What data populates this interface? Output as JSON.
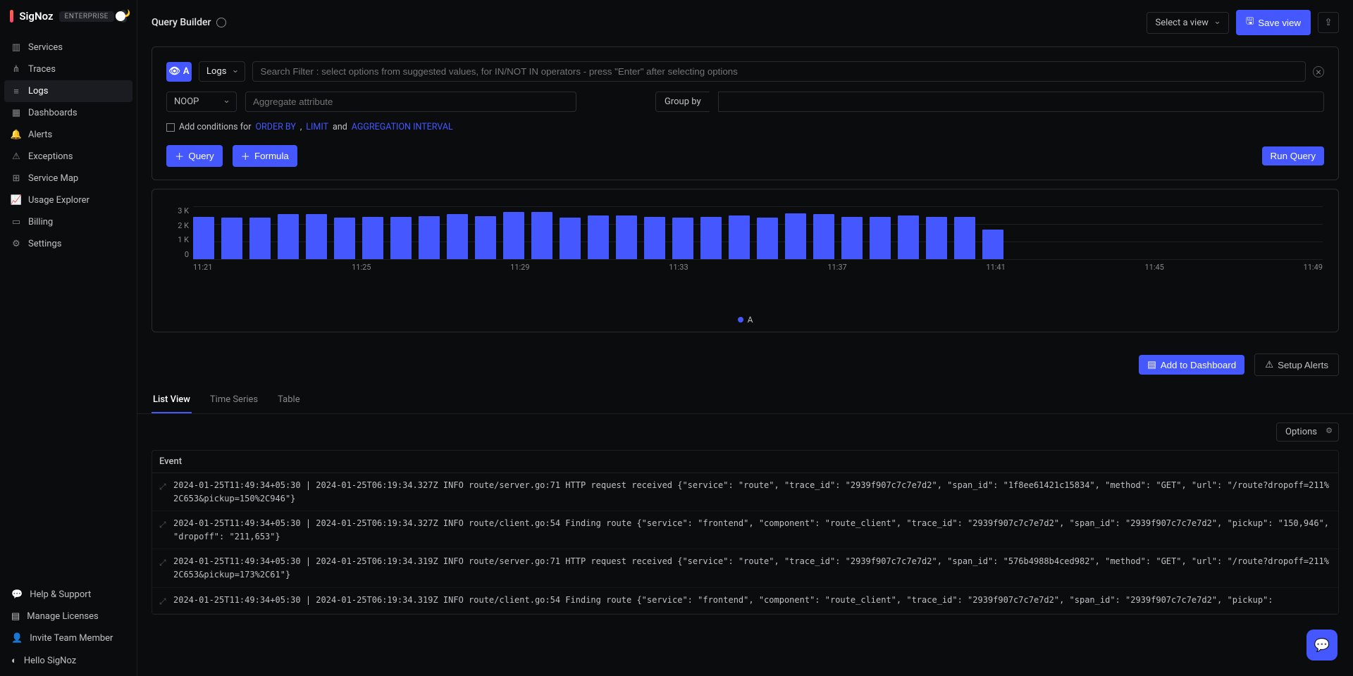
{
  "brand": {
    "name": "SigNoz",
    "badge": "ENTERPRISE"
  },
  "nav": {
    "items": [
      {
        "label": "Services",
        "icon": "bar-chart"
      },
      {
        "label": "Traces",
        "icon": "share"
      },
      {
        "label": "Logs",
        "icon": "logs",
        "active": true
      },
      {
        "label": "Dashboards",
        "icon": "grid"
      },
      {
        "label": "Alerts",
        "icon": "bell"
      },
      {
        "label": "Exceptions",
        "icon": "bug"
      },
      {
        "label": "Service Map",
        "icon": "map"
      },
      {
        "label": "Usage Explorer",
        "icon": "chart-line"
      },
      {
        "label": "Billing",
        "icon": "receipt"
      },
      {
        "label": "Settings",
        "icon": "gear"
      }
    ],
    "bottom": [
      {
        "label": "Help & Support",
        "icon": "help"
      },
      {
        "label": "Manage Licenses",
        "icon": "license"
      },
      {
        "label": "Invite Team Member",
        "icon": "user-plus"
      },
      {
        "label": "Hello SigNoz",
        "icon": "bot"
      }
    ]
  },
  "header": {
    "title": "Query Builder",
    "selectView": "Select a view",
    "saveView": "Save view"
  },
  "builder": {
    "stageLetter": "A",
    "logsSelect": "Logs",
    "filterPlaceholder": "Search Filter : select options from suggested values, for IN/NOT IN operators - press \"Enter\" after selecting options",
    "noop": "NOOP",
    "aggregatePlaceholder": "Aggregate attribute",
    "groupByLabel": "Group by",
    "addConditionsPrefix": "Add conditions for ",
    "orderBy": "ORDER BY",
    "comma": " , ",
    "limit": "LIMIT",
    "and": " and ",
    "aggInterval": "AGGREGATION INTERVAL",
    "queryBtn": "Query",
    "formulaBtn": "Formula",
    "runQueryBtn": "Run Query"
  },
  "chart": {
    "y_labels": [
      "3 K",
      "2 K",
      "1 K",
      "0"
    ],
    "y_max": 3,
    "bar_values": [
      2.4,
      2.35,
      2.35,
      2.55,
      2.55,
      2.35,
      2.4,
      2.4,
      2.45,
      2.55,
      2.45,
      2.7,
      2.7,
      2.35,
      2.5,
      2.5,
      2.4,
      2.35,
      2.4,
      2.5,
      2.35,
      2.6,
      2.55,
      2.4,
      2.4,
      2.5,
      2.4,
      2.4,
      1.7
    ],
    "bar_color": "#4558ff",
    "grid_color": "#1d1f24",
    "x_labels": [
      "11:21",
      "11:25",
      "11:29",
      "11:33",
      "11:37",
      "11:41",
      "11:45",
      "11:49"
    ],
    "legend_label": "A"
  },
  "mid": {
    "addToDashboard": "Add to Dashboard",
    "setupAlerts": "Setup Alerts"
  },
  "tabs": {
    "list": "List View",
    "time": "Time Series",
    "table": "Table",
    "optionsBtn": "Options"
  },
  "logTable": {
    "header": "Event",
    "rows": [
      "2024-01-25T11:49:34+05:30 | 2024-01-25T06:19:34.327Z INFO route/server.go:71 HTTP request received {\"service\": \"route\", \"trace_id\": \"2939f907c7c7e7d2\", \"span_id\": \"1f8ee61421c15834\", \"method\": \"GET\", \"url\": \"/route?dropoff=211%2C653&pickup=150%2C946\"}",
      "2024-01-25T11:49:34+05:30 | 2024-01-25T06:19:34.327Z INFO route/client.go:54 Finding route {\"service\": \"frontend\", \"component\": \"route_client\", \"trace_id\": \"2939f907c7c7e7d2\", \"span_id\": \"2939f907c7c7e7d2\", \"pickup\": \"150,946\", \"dropoff\": \"211,653\"}",
      "2024-01-25T11:49:34+05:30 | 2024-01-25T06:19:34.319Z INFO route/server.go:71 HTTP request received {\"service\": \"route\", \"trace_id\": \"2939f907c7c7e7d2\", \"span_id\": \"576b4988b4ced982\", \"method\": \"GET\", \"url\": \"/route?dropoff=211%2C653&pickup=173%2C61\"}",
      "2024-01-25T11:49:34+05:30 | 2024-01-25T06:19:34.319Z INFO route/client.go:54 Finding route {\"service\": \"frontend\", \"component\": \"route_client\", \"trace_id\": \"2939f907c7c7e7d2\", \"span_id\": \"2939f907c7c7e7d2\", \"pickup\":"
    ]
  }
}
